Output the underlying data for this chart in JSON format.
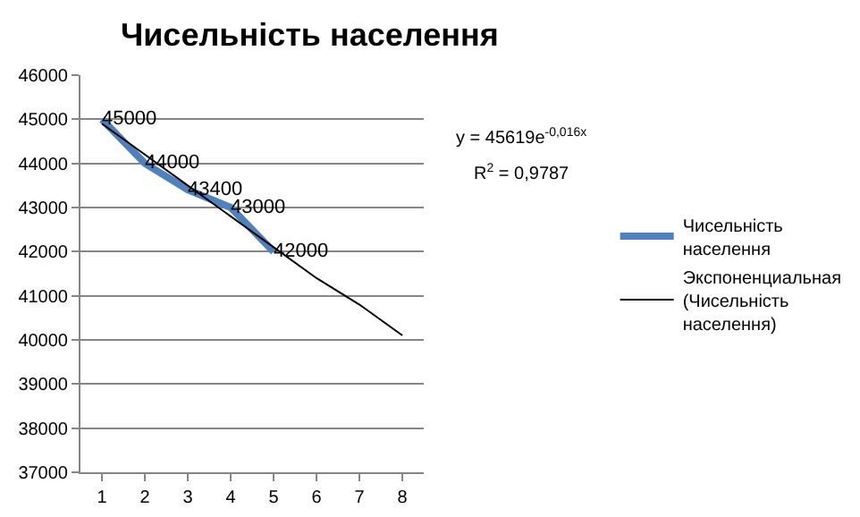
{
  "chart_data": {
    "type": "line",
    "title": "Чисельність населення",
    "x": [
      1,
      2,
      3,
      4,
      5
    ],
    "series": [
      {
        "name": "Чисельність населення",
        "color": "#4f81bd",
        "values": [
          45000,
          44000,
          43400,
          43000,
          42000
        ],
        "value_labels": [
          "45000",
          "44000",
          "43400",
          "43000",
          "42000"
        ]
      },
      {
        "name": "Экспоненциальная (Чисельність населення)",
        "type": "line",
        "color": "#000000",
        "x": [
          1,
          2,
          3,
          4,
          5,
          6,
          7,
          8
        ],
        "values": [
          44900,
          44200,
          43500,
          42800,
          42100,
          41400,
          40800,
          40100
        ]
      }
    ],
    "xlim": [
      0.5,
      8.5
    ],
    "xticks": [
      1,
      2,
      3,
      4,
      5,
      6,
      7,
      8
    ],
    "ylim": [
      37000,
      46000
    ],
    "yticks": [
      37000,
      38000,
      39000,
      40000,
      41000,
      42000,
      43000,
      44000,
      45000,
      46000
    ],
    "grid": "y",
    "legend": "right",
    "marker": "none",
    "line_style": "solid",
    "annotations": [
      "y = 45619e$^{-0,016x}$",
      "R$^{2}$ = 0,9787"
    ]
  }
}
